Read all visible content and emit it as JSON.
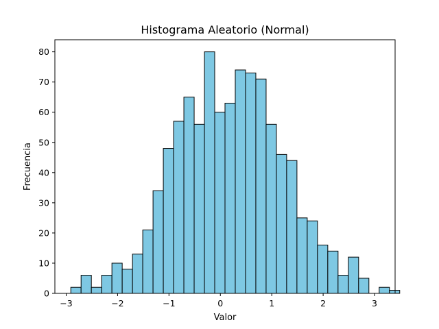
{
  "chart_data": {
    "type": "bar",
    "title": "Histograma Aleatorio (Normal)",
    "xlabel": "Valor",
    "ylabel": "Frecuencia",
    "bar_color": "#7ec8e3",
    "edge_color": "#000000",
    "bin_start": -2.91,
    "bin_width": 0.2,
    "values": [
      2,
      6,
      2,
      6,
      10,
      8,
      13,
      21,
      34,
      48,
      57,
      65,
      56,
      80,
      60,
      63,
      74,
      73,
      71,
      56,
      46,
      44,
      25,
      24,
      16,
      14,
      6,
      12,
      5,
      0,
      2,
      1
    ],
    "xlim": [
      -3.22,
      3.4
    ],
    "ylim": [
      0,
      84
    ],
    "xticks": [
      -3,
      -2,
      -1,
      0,
      1,
      2,
      3
    ],
    "xtick_labels": [
      "−3",
      "−2",
      "−1",
      "0",
      "1",
      "2",
      "3"
    ],
    "yticks": [
      0,
      10,
      20,
      30,
      40,
      50,
      60,
      70,
      80
    ],
    "ytick_labels": [
      "0",
      "10",
      "20",
      "30",
      "40",
      "50",
      "60",
      "70",
      "80"
    ],
    "grid": false,
    "legend": false
  }
}
